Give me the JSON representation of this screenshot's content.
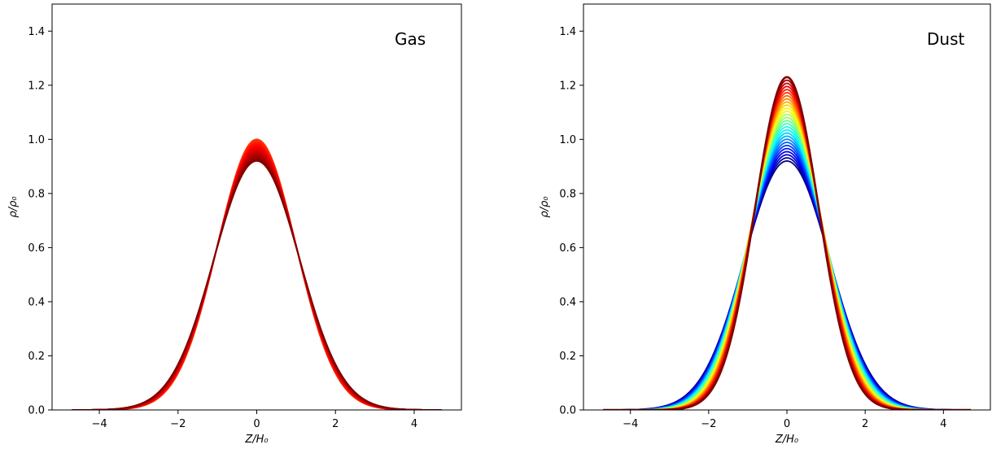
{
  "chart_data": [
    {
      "type": "line",
      "panel_label": "Gas",
      "xlabel": "Z/H₀",
      "ylabel": "ρ/ρ₀",
      "xlim": [
        -5.2,
        5.2
      ],
      "ylim": [
        0,
        1.5
      ],
      "x_range": [
        -4.7,
        4.7
      ],
      "xticks": [
        -4,
        -2,
        0,
        2,
        4
      ],
      "xtick_labels": [
        "−4",
        "−2",
        "0",
        "2",
        "4"
      ],
      "yticks": [
        0.0,
        0.2,
        0.4,
        0.6,
        0.8,
        1.0,
        1.2,
        1.4
      ],
      "ytick_labels": [
        "0.0",
        "0.2",
        "0.4",
        "0.6",
        "0.8",
        "1.0",
        "1.2",
        "1.4"
      ],
      "profile": "gaussian",
      "peak_range": [
        1.0,
        0.92
      ],
      "width_range": [
        1.0,
        1.087
      ],
      "curve_count": 20,
      "colormap": "jet",
      "grid": false,
      "legend": "none"
    },
    {
      "type": "line",
      "panel_label": "Dust",
      "xlabel": "Z/H₀",
      "ylabel": "ρ/ρ₀",
      "xlim": [
        -5.2,
        5.2
      ],
      "ylim": [
        0,
        1.5
      ],
      "x_range": [
        -4.7,
        4.7
      ],
      "xticks": [
        -4,
        -2,
        0,
        2,
        4
      ],
      "xtick_labels": [
        "−4",
        "−2",
        "0",
        "2",
        "4"
      ],
      "yticks": [
        0.0,
        0.2,
        0.4,
        0.6,
        0.8,
        1.0,
        1.2,
        1.4
      ],
      "ytick_labels": [
        "0.0",
        "0.2",
        "0.4",
        "0.6",
        "0.8",
        "1.0",
        "1.2",
        "1.4"
      ],
      "profile": "gaussian",
      "peak_range": [
        0.92,
        1.23
      ],
      "width_range": [
        1.087,
        0.813
      ],
      "curve_count": 28,
      "colormap": "jet",
      "grid": false,
      "legend": "none"
    }
  ]
}
